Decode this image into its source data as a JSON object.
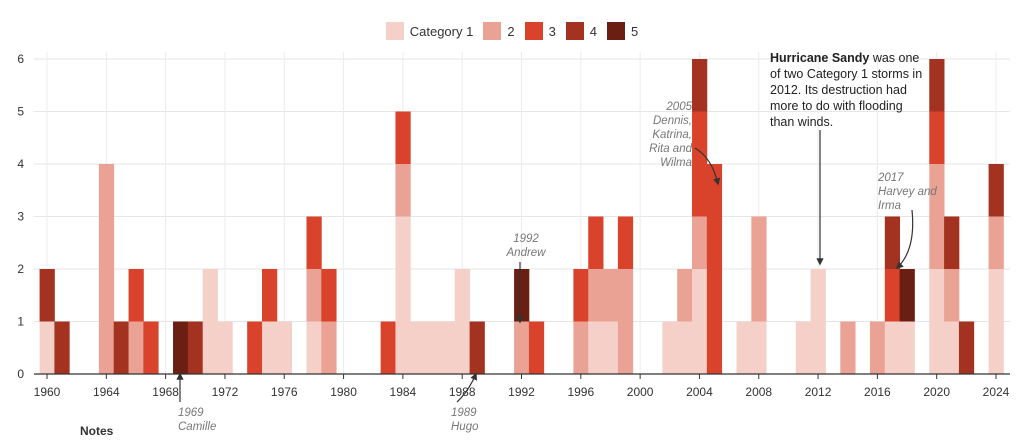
{
  "legend": [
    {
      "label": "Category 1",
      "color": "#f5d0c8"
    },
    {
      "label": "2",
      "color": "#e9a294"
    },
    {
      "label": "3",
      "color": "#d9432c"
    },
    {
      "label": "4",
      "color": "#a43220"
    },
    {
      "label": "5",
      "color": "#6b1f12"
    }
  ],
  "notes_label": "Notes",
  "annotations": {
    "camille": [
      "1969",
      "Camille"
    ],
    "hugo": [
      "1989",
      "Hugo"
    ],
    "andrew": [
      "1992",
      "Andrew"
    ],
    "katrina": [
      "2005",
      "Dennis,",
      "Katrina,",
      "Rita and",
      "Wilma"
    ],
    "harvey": [
      "2017",
      "Harvey and",
      "Irma"
    ],
    "sandy": {
      "bold": "Hurricane Sandy",
      "line1_rest": " was one",
      "lines": [
        "of two Category 1 storms in",
        "2012. Its destruction had",
        "more to do with flooding",
        "than winds."
      ]
    }
  },
  "chart_data": {
    "type": "bar",
    "stacked": true,
    "title": "",
    "xlabel": "",
    "ylabel": "",
    "xlim": [
      1960,
      2024
    ],
    "ylim": [
      0,
      6
    ],
    "yticks": [
      0,
      1,
      2,
      3,
      4,
      5,
      6
    ],
    "xticks": [
      1960,
      1964,
      1968,
      1972,
      1976,
      1980,
      1984,
      1988,
      1992,
      1996,
      2000,
      2004,
      2008,
      2012,
      2016,
      2020,
      2024
    ],
    "grid": true,
    "legend_position": "top-center",
    "categories": [
      1960,
      1961,
      1962,
      1963,
      1964,
      1965,
      1966,
      1967,
      1968,
      1969,
      1970,
      1971,
      1972,
      1973,
      1974,
      1975,
      1976,
      1977,
      1978,
      1979,
      1980,
      1981,
      1982,
      1983,
      1984,
      1985,
      1986,
      1987,
      1988,
      1989,
      1990,
      1991,
      1992,
      1993,
      1994,
      1995,
      1996,
      1997,
      1998,
      1999,
      2000,
      2001,
      2002,
      2003,
      2004,
      2005,
      2006,
      2007,
      2008,
      2009,
      2010,
      2011,
      2012,
      2013,
      2014,
      2015,
      2016,
      2017,
      2018,
      2019,
      2020,
      2021,
      2022,
      2023,
      2024
    ],
    "series": [
      {
        "name": "Category 1",
        "values": [
          1,
          0,
          0,
          0,
          0,
          0,
          0,
          0,
          0,
          0,
          0,
          2,
          1,
          0,
          0,
          1,
          1,
          0,
          1,
          0,
          0,
          0,
          0,
          0,
          3,
          1,
          1,
          1,
          2,
          0,
          0,
          0,
          0,
          0,
          0,
          0,
          0,
          1,
          1,
          0,
          0,
          0,
          1,
          1,
          2,
          0,
          0,
          1,
          1,
          0,
          0,
          1,
          2,
          0,
          0,
          0,
          0,
          1,
          1,
          0,
          2,
          1,
          0,
          0,
          2
        ]
      },
      {
        "name": "2",
        "values": [
          0,
          0,
          0,
          0,
          4,
          0,
          1,
          0,
          0,
          0,
          0,
          0,
          0,
          0,
          0,
          0,
          0,
          0,
          1,
          1,
          0,
          0,
          0,
          0,
          1,
          0,
          0,
          0,
          0,
          0,
          0,
          0,
          1,
          0,
          0,
          0,
          1,
          1,
          1,
          2,
          0,
          0,
          0,
          1,
          1,
          0,
          0,
          0,
          2,
          0,
          0,
          0,
          0,
          0,
          1,
          0,
          1,
          0,
          0,
          0,
          2,
          1,
          0,
          0,
          1
        ]
      },
      {
        "name": "3",
        "values": [
          0,
          0,
          0,
          0,
          0,
          0,
          1,
          1,
          0,
          0,
          0,
          0,
          0,
          0,
          1,
          1,
          0,
          0,
          1,
          1,
          0,
          0,
          0,
          1,
          1,
          0,
          0,
          0,
          0,
          0,
          0,
          0,
          0,
          1,
          0,
          0,
          1,
          1,
          0,
          1,
          0,
          0,
          0,
          0,
          2,
          4,
          0,
          0,
          0,
          0,
          0,
          0,
          0,
          0,
          0,
          0,
          0,
          1,
          0,
          0,
          1,
          0,
          0,
          0,
          0
        ]
      },
      {
        "name": "4",
        "values": [
          1,
          1,
          0,
          0,
          0,
          1,
          0,
          0,
          0,
          0,
          1,
          0,
          0,
          0,
          0,
          0,
          0,
          0,
          0,
          0,
          0,
          0,
          0,
          0,
          0,
          0,
          0,
          0,
          0,
          1,
          0,
          0,
          0,
          0,
          0,
          0,
          0,
          0,
          0,
          0,
          0,
          0,
          0,
          0,
          1,
          0,
          0,
          0,
          0,
          0,
          0,
          0,
          0,
          0,
          0,
          0,
          0,
          1,
          0,
          0,
          1,
          1,
          1,
          0,
          1
        ]
      },
      {
        "name": "5",
        "values": [
          0,
          0,
          0,
          0,
          0,
          0,
          0,
          0,
          0,
          1,
          0,
          0,
          0,
          0,
          0,
          0,
          0,
          0,
          0,
          0,
          0,
          0,
          0,
          0,
          0,
          0,
          0,
          0,
          0,
          0,
          0,
          0,
          1,
          0,
          0,
          0,
          0,
          0,
          0,
          0,
          0,
          0,
          0,
          0,
          0,
          0,
          0,
          0,
          0,
          0,
          0,
          0,
          0,
          0,
          0,
          0,
          0,
          0,
          1,
          0,
          0,
          0,
          0,
          0,
          0
        ]
      }
    ]
  }
}
